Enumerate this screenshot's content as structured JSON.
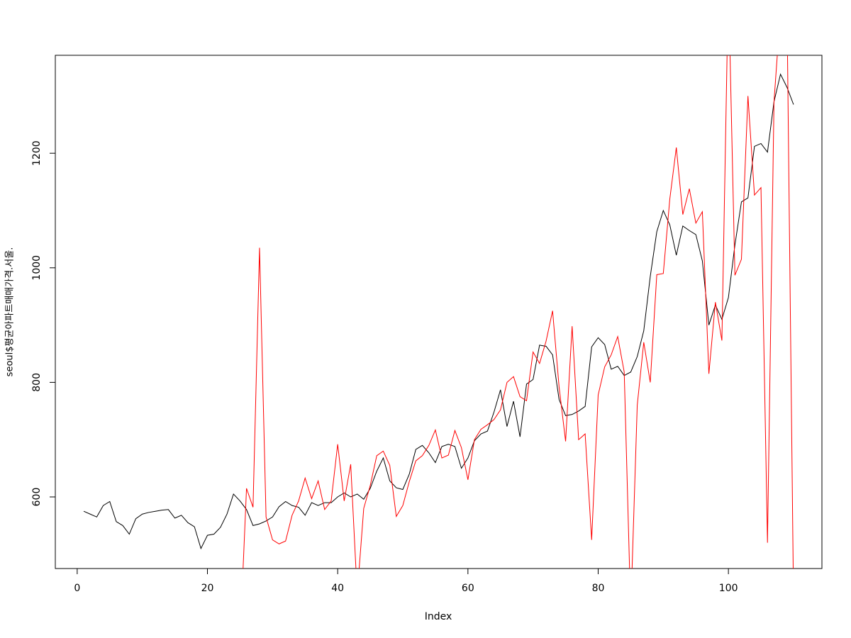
{
  "chart_data": {
    "type": "line",
    "x_label": "Index",
    "y_label": "seoul$평균아파트매매가격.서울.",
    "x": [
      1,
      2,
      3,
      4,
      5,
      6,
      7,
      8,
      9,
      10,
      11,
      12,
      13,
      14,
      15,
      16,
      17,
      18,
      19,
      20,
      21,
      22,
      23,
      24,
      25,
      26,
      27,
      28,
      29,
      30,
      31,
      32,
      33,
      34,
      35,
      36,
      37,
      38,
      39,
      40,
      41,
      42,
      43,
      44,
      45,
      46,
      47,
      48,
      49,
      50,
      51,
      52,
      53,
      54,
      55,
      56,
      57,
      58,
      59,
      60,
      61,
      62,
      63,
      64,
      65,
      66,
      67,
      68,
      69,
      70,
      71,
      72,
      73,
      74,
      75,
      76,
      77,
      78,
      79,
      80,
      81,
      82,
      83,
      84,
      85,
      86,
      87,
      88,
      89,
      90,
      91,
      92,
      93,
      94,
      95,
      96,
      97,
      98,
      99,
      100,
      101,
      102,
      103,
      104,
      105,
      106,
      107,
      108,
      109,
      110
    ],
    "series": [
      {
        "color": "#000000",
        "values": [
          575,
          570,
          565,
          585,
          592,
          557,
          550,
          535,
          562,
          570,
          573,
          575,
          577,
          578,
          563,
          568,
          555,
          548,
          510,
          533,
          535,
          547,
          570,
          605,
          593,
          578,
          550,
          553,
          558,
          565,
          583,
          592,
          585,
          582,
          568,
          590,
          585,
          590,
          590,
          600,
          607,
          600,
          605,
          596,
          615,
          645,
          668,
          628,
          616,
          613,
          640,
          683,
          690,
          677,
          660,
          688,
          692,
          688,
          650,
          668,
          698,
          710,
          715,
          748,
          787,
          723,
          767,
          705,
          797,
          805,
          865,
          863,
          848,
          770,
          742,
          744,
          750,
          758,
          862,
          878,
          866,
          823,
          828,
          812,
          818,
          845,
          890,
          985,
          1063,
          1100,
          1075,
          1022,
          1073,
          1065,
          1058,
          1012,
          900,
          935,
          910,
          948,
          1040,
          1115,
          1122,
          1212,
          1217,
          1202,
          1290,
          1338,
          1315,
          1285
        ]
      },
      {
        "color": "#ff0000",
        "values": [
          null,
          null,
          null,
          null,
          null,
          null,
          null,
          null,
          null,
          null,
          null,
          null,
          null,
          null,
          null,
          null,
          null,
          null,
          null,
          null,
          null,
          null,
          null,
          null,
          350,
          615,
          582,
          1035,
          565,
          525,
          518,
          523,
          568,
          593,
          633,
          597,
          628,
          578,
          593,
          692,
          593,
          657,
          430,
          580,
          620,
          672,
          680,
          655,
          566,
          585,
          627,
          663,
          672,
          690,
          717,
          668,
          673,
          716,
          686,
          630,
          700,
          718,
          726,
          735,
          752,
          800,
          810,
          775,
          768,
          853,
          833,
          872,
          925,
          792,
          697,
          898,
          700,
          710,
          525,
          778,
          827,
          848,
          880,
          818,
          400,
          760,
          870,
          800,
          988,
          990,
          1120,
          1210,
          1093,
          1138,
          1078,
          1098,
          815,
          940,
          873,
          1500,
          987,
          1015,
          1300,
          1127,
          1140,
          520,
          1290,
          1450,
          1450,
          420
        ]
      }
    ],
    "xlim": [
      -3.36,
      114.36
    ],
    "ylim": [
      475,
      1371
    ],
    "xticks": [
      0,
      20,
      40,
      60,
      80,
      100
    ],
    "yticks": [
      600,
      800,
      1000,
      1200
    ]
  }
}
